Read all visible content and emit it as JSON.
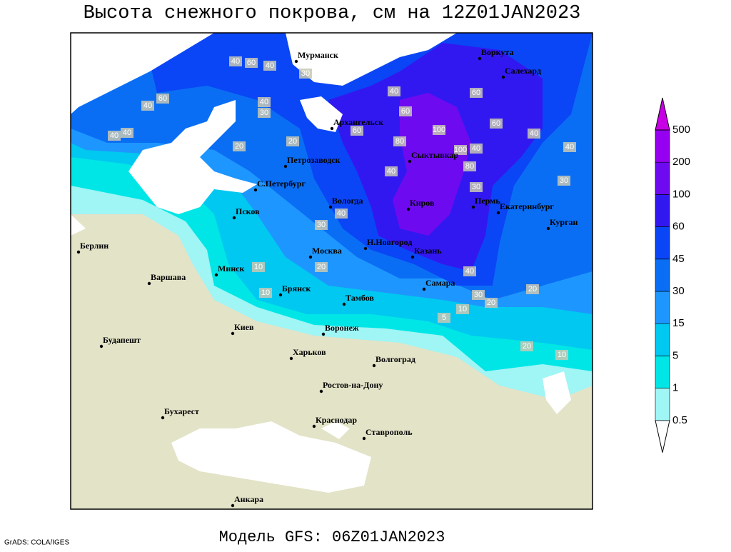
{
  "title": "Высота снежного покрова, см на 12Z01JAN2023",
  "footer": "Модель GFS: 06Z01JAN2023",
  "credit": "GrADS: COLA/IGES",
  "cities": [
    "Мурманск",
    "Воркута",
    "Салехард",
    "Архангельск",
    "Сыктывкар",
    "Петрозаводск",
    "С.Петербург",
    "Вологда",
    "Киров",
    "Пермь",
    "Екатеринбург",
    "Курган",
    "Псков",
    "Берлин",
    "Н.Новгород",
    "Казань",
    "Москва",
    "Минск",
    "Варшава",
    "Брянск",
    "Тамбов",
    "Самара",
    "Киев",
    "Воронеж",
    "Будапешт",
    "Харьков",
    "Волгоград",
    "Ростов-на-Дону",
    "Бухарест",
    "Краснодар",
    "Ставрополь",
    "Анкара"
  ],
  "contour_labels": [
    40,
    60,
    40,
    30,
    40,
    60,
    40,
    40,
    20,
    40,
    30,
    40,
    60,
    80,
    60,
    100,
    100,
    80,
    60,
    40,
    60,
    40,
    30,
    40,
    40,
    30,
    20,
    40,
    30,
    10,
    20,
    10,
    40,
    30,
    20,
    20,
    20,
    10,
    10,
    5
  ],
  "colorbar": {
    "levels": [
      0.5,
      1,
      5,
      15,
      30,
      45,
      60,
      100,
      200,
      500
    ],
    "colors": [
      "#ffffff",
      "#a0f5f5",
      "#00e6e6",
      "#00c8f0",
      "#1e96ff",
      "#0a6ef5",
      "#0a46f5",
      "#3218f0",
      "#6e0af0",
      "#9600f0",
      "#c800e6"
    ]
  }
}
